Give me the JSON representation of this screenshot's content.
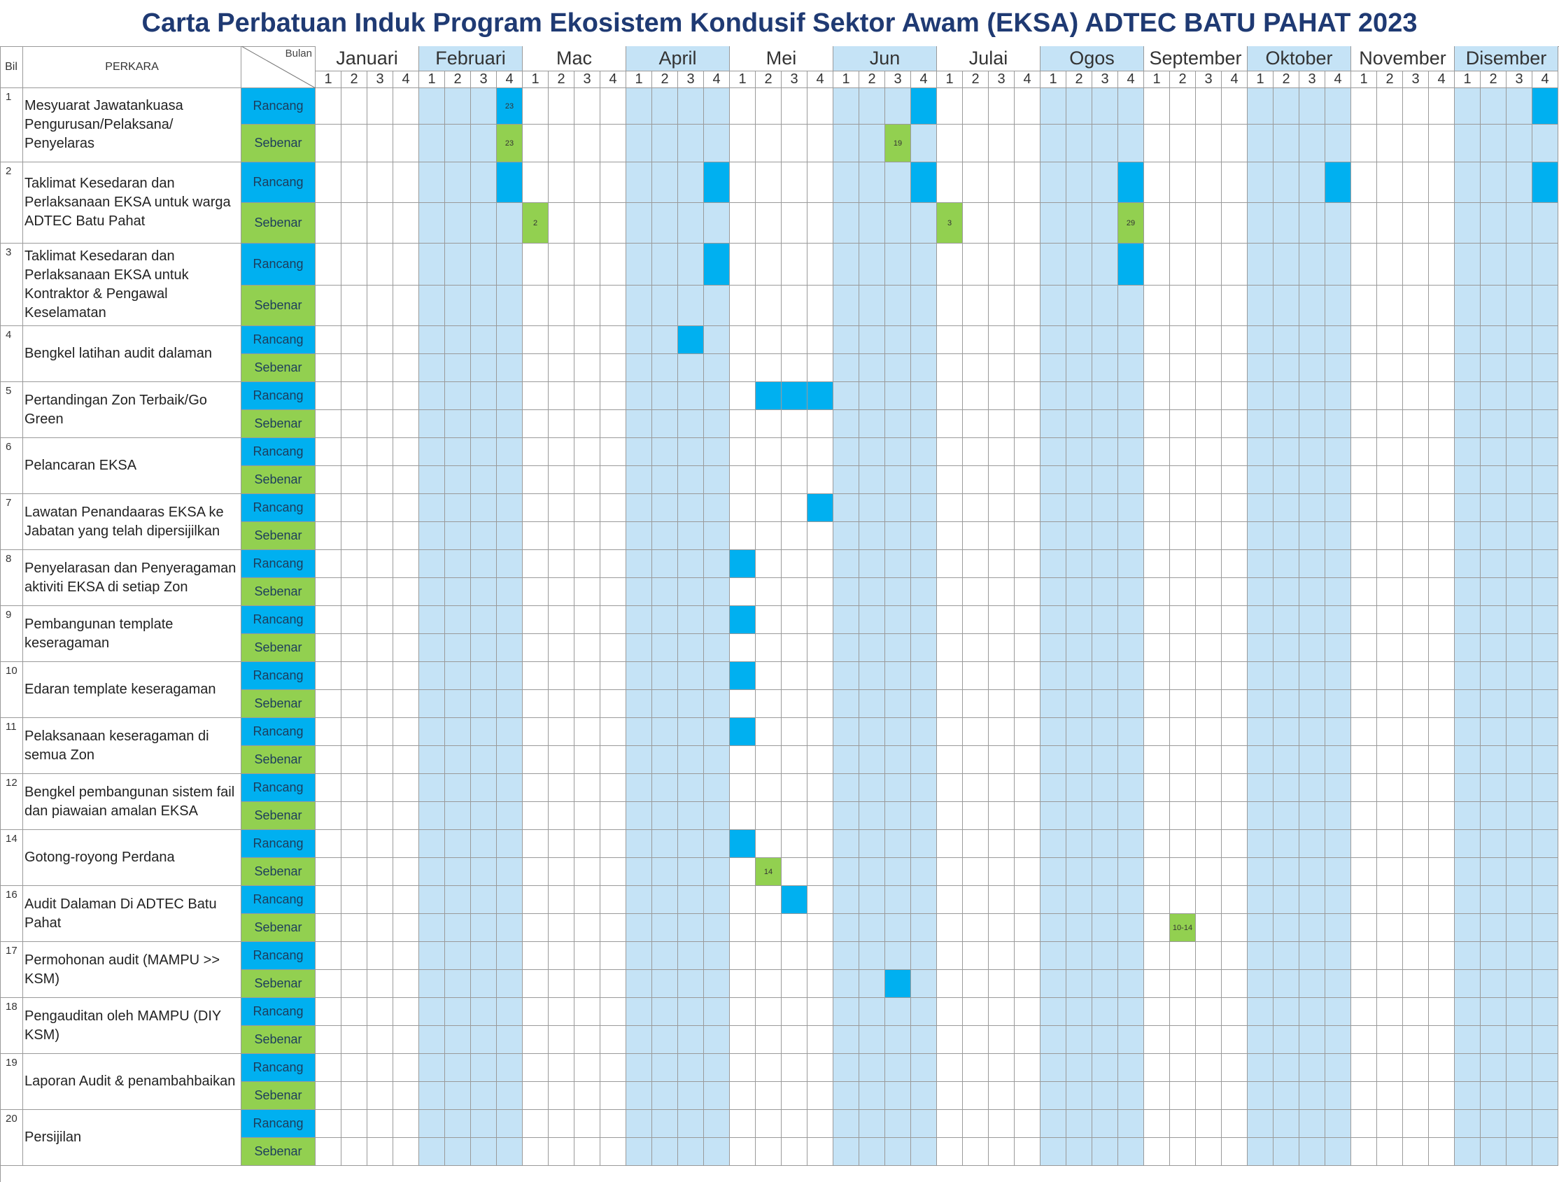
{
  "title": "Carta Perbatuan Induk Program Ekosistem Kondusif Sektor Awam  (EKSA) ADTEC BATU PAHAT 2023",
  "header": {
    "bil": "Bil",
    "perkara": "PERKARA",
    "bulan": "Bulan",
    "months": [
      "Januari",
      "Februari",
      "Mac",
      "April",
      "Mei",
      "Jun",
      "Julai",
      "Ogos",
      "September",
      "Oktober",
      "November",
      "Disember"
    ],
    "weeks": [
      "1",
      "2",
      "3",
      "4"
    ]
  },
  "labels": {
    "rancang": "Rancang",
    "sebenar": "Sebenar"
  },
  "colors": {
    "rancang": "#00b0f0",
    "sebenar": "#92d050",
    "shaded_month": "#c5e3f6",
    "title": "#1f3a73"
  },
  "shaded_months": [
    2,
    4,
    6,
    8,
    10,
    12
  ],
  "items": [
    {
      "bil": "1",
      "perkara": "Mesyuarat Jawatankuasa Pengurusan/Pelaksana/ Penyelaras",
      "rancang": [
        {
          "m": 2,
          "w": 4,
          "text": "23"
        },
        {
          "m": 6,
          "w": 4
        },
        {
          "m": 12,
          "w": 4
        }
      ],
      "sebenar": [
        {
          "m": 2,
          "w": 4,
          "text": "23"
        },
        {
          "m": 6,
          "w": 3,
          "text": "19"
        }
      ]
    },
    {
      "bil": "2",
      "perkara": "Taklimat Kesedaran dan Perlaksanaan EKSA untuk warga ADTEC Batu Pahat",
      "rancang": [
        {
          "m": 2,
          "w": 4
        },
        {
          "m": 4,
          "w": 4
        },
        {
          "m": 6,
          "w": 4
        },
        {
          "m": 8,
          "w": 4
        },
        {
          "m": 10,
          "w": 4
        },
        {
          "m": 12,
          "w": 4
        }
      ],
      "sebenar": [
        {
          "m": 3,
          "w": 1,
          "text": "2"
        },
        {
          "m": 7,
          "w": 1,
          "text": "3"
        },
        {
          "m": 8,
          "w": 4,
          "text": "29"
        }
      ]
    },
    {
      "bil": "3",
      "perkara": "Taklimat Kesedaran dan Perlaksanaan EKSA untuk Kontraktor  & Pengawal Keselamatan",
      "rancang": [
        {
          "m": 4,
          "w": 4
        },
        {
          "m": 8,
          "w": 4
        }
      ],
      "sebenar": []
    },
    {
      "bil": "4",
      "perkara": "Bengkel latihan audit dalaman",
      "rancang": [
        {
          "m": 4,
          "w": 3
        }
      ],
      "sebenar": []
    },
    {
      "bil": "5",
      "perkara": "Pertandingan Zon Terbaik/Go Green",
      "rancang": [
        {
          "m": 5,
          "w": 2
        },
        {
          "m": 5,
          "w": 3
        },
        {
          "m": 5,
          "w": 4
        }
      ],
      "sebenar": []
    },
    {
      "bil": "6",
      "perkara": "Pelancaran EKSA",
      "rancang": [],
      "sebenar": []
    },
    {
      "bil": "7",
      "perkara": "Lawatan Penandaaras EKSA ke Jabatan yang telah dipersijilkan",
      "rancang": [
        {
          "m": 5,
          "w": 4
        }
      ],
      "sebenar": []
    },
    {
      "bil": "8",
      "perkara": "Penyelarasan dan Penyeragaman aktiviti EKSA di setiap Zon",
      "rancang": [
        {
          "m": 5,
          "w": 1
        }
      ],
      "sebenar": []
    },
    {
      "bil": "9",
      "perkara": "Pembangunan template keseragaman",
      "rancang": [
        {
          "m": 5,
          "w": 1
        }
      ],
      "sebenar": []
    },
    {
      "bil": "10",
      "perkara": "Edaran template keseragaman",
      "rancang": [
        {
          "m": 5,
          "w": 1
        }
      ],
      "sebenar": []
    },
    {
      "bil": "11",
      "perkara": "Pelaksanaan keseragaman di semua Zon",
      "rancang": [
        {
          "m": 5,
          "w": 1
        }
      ],
      "sebenar": []
    },
    {
      "bil": "12",
      "perkara": "Bengkel pembangunan sistem fail dan piawaian amalan EKSA",
      "rancang": [],
      "sebenar": []
    },
    {
      "bil": "14",
      "perkara": "Gotong-royong Perdana",
      "rancang": [
        {
          "m": 5,
          "w": 1
        }
      ],
      "sebenar": [
        {
          "m": 5,
          "w": 2,
          "text": "14"
        }
      ]
    },
    {
      "bil": "16",
      "perkara": "Audit Dalaman Di ADTEC Batu Pahat",
      "rancang": [
        {
          "m": 5,
          "w": 3
        }
      ],
      "sebenar": [
        {
          "m": 9,
          "w": 2,
          "text": "10-14"
        }
      ]
    },
    {
      "bil": "17",
      "perkara": "Permohonan audit (MAMPU >> KSM)",
      "rancang": [],
      "sebenar": [
        {
          "m": 6,
          "w": 3,
          "blue": true
        }
      ]
    },
    {
      "bil": "18",
      "perkara": "Pengauditan oleh MAMPU (DIY KSM)",
      "rancang": [],
      "sebenar": []
    },
    {
      "bil": "19",
      "perkara": "Laporan Audit & penambahbaikan",
      "rancang": [],
      "sebenar": []
    },
    {
      "bil": "20",
      "perkara": "Persijilan",
      "rancang": [],
      "sebenar": []
    }
  ]
}
